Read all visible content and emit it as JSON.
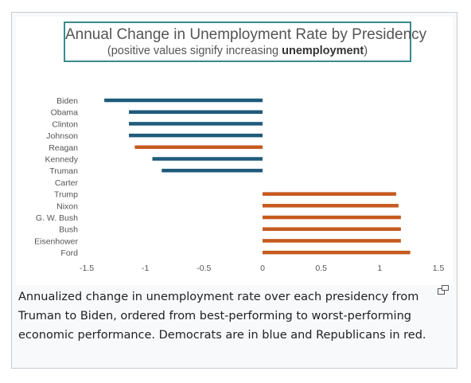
{
  "chart_data": {
    "type": "bar",
    "orientation": "horizontal",
    "title": "Annual Change in Unemployment Rate by Presidency",
    "subtitle_prefix": "(positive values signify increasing ",
    "subtitle_bold": "unemployment",
    "subtitle_suffix": ")",
    "categories": [
      "Biden",
      "Obama",
      "Clinton",
      "Johnson",
      "Reagan",
      "Kennedy",
      "Truman",
      "Carter",
      "Trump",
      "Nixon",
      "G. W. Bush",
      "Bush",
      "Eisenhower",
      "Ford"
    ],
    "values": [
      -1.35,
      -1.14,
      -1.14,
      -1.14,
      -1.09,
      -0.94,
      -0.86,
      0.0,
      1.14,
      1.16,
      1.18,
      1.18,
      1.18,
      1.26
    ],
    "parties": [
      "D",
      "D",
      "D",
      "D",
      "R",
      "D",
      "D",
      "D",
      "R",
      "R",
      "R",
      "R",
      "R",
      "R"
    ],
    "party_colors": {
      "D": "#1f5b7a",
      "R": "#c55a1f"
    },
    "xlim": [
      -1.5,
      1.5
    ],
    "xticks": [
      -1.5,
      -1,
      -0.5,
      0,
      0.5,
      1,
      1.5
    ],
    "xtick_labels": [
      "-1.5",
      "-1",
      "-0.5",
      "0",
      "0.5",
      "1",
      "1.5"
    ],
    "grid": false,
    "legend": "none"
  },
  "caption": "Annualized change in unemployment rate over each presidency from Truman to Biden, ordered from best-performing to worst-performing economic performance. Democrats are in blue and Republicans in red.",
  "magnify_icon": "magnify-clip-icon"
}
